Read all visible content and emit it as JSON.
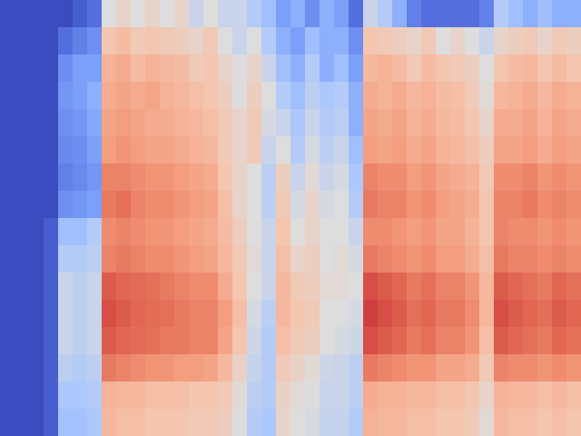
{
  "chart_data": {
    "type": "heatmap",
    "tick_labels": false,
    "zlim": [
      0,
      1
    ],
    "cells": [
      [
        0,
        0,
        0,
        0,
        0,
        0.05,
        0.1,
        0.5,
        0.55,
        0.5,
        0.55,
        0.5,
        0.55,
        0.45,
        0.5,
        0.45,
        0.45,
        0.4,
        0.35,
        0.25,
        0.3,
        0.2,
        0.3,
        0.25,
        0.1,
        0.45,
        0.4,
        0.3,
        0.15,
        0.1,
        0.1,
        0.1,
        0.1,
        0.15,
        0.4,
        0.35,
        0.3,
        0.35,
        0.3,
        0.3
      ],
      [
        0,
        0,
        0,
        0,
        0.1,
        0.15,
        0.2,
        0.62,
        0.65,
        0.6,
        0.62,
        0.6,
        0.58,
        0.55,
        0.6,
        0.5,
        0.45,
        0.5,
        0.4,
        0.3,
        0.25,
        0.35,
        0.3,
        0.3,
        0.2,
        0.62,
        0.6,
        0.58,
        0.55,
        0.6,
        0.5,
        0.55,
        0.5,
        0.45,
        0.55,
        0.58,
        0.6,
        0.55,
        0.6,
        0.58
      ],
      [
        0,
        0,
        0,
        0,
        0.2,
        0.25,
        0.25,
        0.68,
        0.7,
        0.65,
        0.68,
        0.66,
        0.65,
        0.6,
        0.62,
        0.55,
        0.5,
        0.55,
        0.45,
        0.35,
        0.3,
        0.4,
        0.3,
        0.35,
        0.25,
        0.66,
        0.68,
        0.65,
        0.6,
        0.65,
        0.62,
        0.6,
        0.58,
        0.5,
        0.62,
        0.65,
        0.66,
        0.62,
        0.65,
        0.62
      ],
      [
        0,
        0,
        0,
        0,
        0.22,
        0.25,
        0.3,
        0.7,
        0.72,
        0.7,
        0.72,
        0.68,
        0.66,
        0.64,
        0.62,
        0.58,
        0.5,
        0.58,
        0.5,
        0.4,
        0.35,
        0.42,
        0.38,
        0.4,
        0.3,
        0.7,
        0.68,
        0.7,
        0.66,
        0.68,
        0.65,
        0.64,
        0.6,
        0.52,
        0.66,
        0.68,
        0.7,
        0.66,
        0.7,
        0.68
      ],
      [
        0,
        0,
        0,
        0,
        0.2,
        0.22,
        0.28,
        0.72,
        0.74,
        0.72,
        0.7,
        0.7,
        0.68,
        0.66,
        0.64,
        0.6,
        0.55,
        0.6,
        0.48,
        0.45,
        0.38,
        0.45,
        0.4,
        0.42,
        0.3,
        0.72,
        0.7,
        0.72,
        0.68,
        0.7,
        0.66,
        0.65,
        0.62,
        0.55,
        0.7,
        0.7,
        0.72,
        0.68,
        0.72,
        0.7
      ],
      [
        0,
        0,
        0,
        0,
        0.18,
        0.2,
        0.25,
        0.74,
        0.76,
        0.74,
        0.72,
        0.72,
        0.7,
        0.68,
        0.66,
        0.6,
        0.55,
        0.6,
        0.45,
        0.5,
        0.4,
        0.48,
        0.42,
        0.45,
        0.35,
        0.74,
        0.72,
        0.74,
        0.7,
        0.72,
        0.68,
        0.66,
        0.64,
        0.58,
        0.72,
        0.72,
        0.74,
        0.7,
        0.74,
        0.72
      ],
      [
        0,
        0,
        0,
        0,
        0.15,
        0.18,
        0.22,
        0.8,
        0.8,
        0.78,
        0.76,
        0.76,
        0.74,
        0.72,
        0.7,
        0.62,
        0.55,
        0.5,
        0.42,
        0.58,
        0.45,
        0.52,
        0.45,
        0.48,
        0.38,
        0.8,
        0.78,
        0.78,
        0.74,
        0.76,
        0.72,
        0.7,
        0.68,
        0.6,
        0.78,
        0.78,
        0.8,
        0.76,
        0.78,
        0.76
      ],
      [
        0,
        0,
        0,
        0,
        0.2,
        0.22,
        0.25,
        0.82,
        0.84,
        0.8,
        0.78,
        0.78,
        0.76,
        0.74,
        0.72,
        0.64,
        0.55,
        0.5,
        0.42,
        0.6,
        0.48,
        0.55,
        0.48,
        0.5,
        0.4,
        0.82,
        0.8,
        0.8,
        0.76,
        0.78,
        0.74,
        0.72,
        0.7,
        0.62,
        0.8,
        0.8,
        0.82,
        0.78,
        0.8,
        0.78
      ],
      [
        0,
        0,
        0,
        0.05,
        0.35,
        0.35,
        0.4,
        0.78,
        0.8,
        0.78,
        0.76,
        0.76,
        0.74,
        0.72,
        0.7,
        0.65,
        0.58,
        0.5,
        0.45,
        0.62,
        0.5,
        0.55,
        0.5,
        0.5,
        0.45,
        0.78,
        0.78,
        0.76,
        0.74,
        0.76,
        0.72,
        0.72,
        0.68,
        0.62,
        0.8,
        0.78,
        0.78,
        0.76,
        0.78,
        0.76
      ],
      [
        0,
        0,
        0,
        0.05,
        0.4,
        0.4,
        0.42,
        0.8,
        0.82,
        0.8,
        0.78,
        0.78,
        0.76,
        0.74,
        0.72,
        0.66,
        0.6,
        0.52,
        0.45,
        0.64,
        0.55,
        0.58,
        0.5,
        0.52,
        0.48,
        0.82,
        0.8,
        0.78,
        0.76,
        0.78,
        0.74,
        0.74,
        0.7,
        0.64,
        0.82,
        0.8,
        0.8,
        0.78,
        0.8,
        0.78
      ],
      [
        0,
        0,
        0,
        0.05,
        0.45,
        0.42,
        0.45,
        0.88,
        0.86,
        0.85,
        0.84,
        0.82,
        0.8,
        0.78,
        0.78,
        0.7,
        0.62,
        0.5,
        0.45,
        0.66,
        0.6,
        0.58,
        0.52,
        0.52,
        0.5,
        0.9,
        0.88,
        0.86,
        0.82,
        0.84,
        0.8,
        0.8,
        0.76,
        0.66,
        0.88,
        0.86,
        0.84,
        0.82,
        0.86,
        0.84
      ],
      [
        0,
        0,
        0,
        0.05,
        0.45,
        0.42,
        0.45,
        0.9,
        0.88,
        0.86,
        0.85,
        0.84,
        0.82,
        0.8,
        0.8,
        0.74,
        0.64,
        0.48,
        0.42,
        0.66,
        0.62,
        0.6,
        0.5,
        0.5,
        0.48,
        0.92,
        0.9,
        0.88,
        0.84,
        0.86,
        0.82,
        0.82,
        0.78,
        0.66,
        0.9,
        0.88,
        0.86,
        0.84,
        0.88,
        0.86
      ],
      [
        0,
        0,
        0,
        0.05,
        0.45,
        0.42,
        0.45,
        0.88,
        0.86,
        0.85,
        0.84,
        0.82,
        0.82,
        0.8,
        0.8,
        0.72,
        0.62,
        0.46,
        0.4,
        0.64,
        0.6,
        0.58,
        0.5,
        0.48,
        0.46,
        0.9,
        0.88,
        0.86,
        0.82,
        0.84,
        0.8,
        0.8,
        0.76,
        0.64,
        0.88,
        0.86,
        0.84,
        0.82,
        0.86,
        0.84
      ],
      [
        0,
        0,
        0,
        0.05,
        0.42,
        0.4,
        0.42,
        0.82,
        0.8,
        0.78,
        0.76,
        0.76,
        0.74,
        0.74,
        0.72,
        0.66,
        0.56,
        0.44,
        0.4,
        0.6,
        0.56,
        0.52,
        0.46,
        0.45,
        0.42,
        0.82,
        0.8,
        0.78,
        0.76,
        0.76,
        0.72,
        0.72,
        0.7,
        0.6,
        0.8,
        0.78,
        0.78,
        0.76,
        0.78,
        0.76
      ],
      [
        0,
        0,
        0,
        0.05,
        0.38,
        0.38,
        0.4,
        0.68,
        0.66,
        0.66,
        0.64,
        0.64,
        0.64,
        0.62,
        0.62,
        0.6,
        0.52,
        0.42,
        0.4,
        0.56,
        0.52,
        0.5,
        0.45,
        0.45,
        0.42,
        0.7,
        0.68,
        0.68,
        0.66,
        0.66,
        0.64,
        0.64,
        0.62,
        0.55,
        0.68,
        0.66,
        0.66,
        0.64,
        0.66,
        0.64
      ],
      [
        0,
        0,
        0,
        0.05,
        0.36,
        0.36,
        0.38,
        0.66,
        0.64,
        0.64,
        0.62,
        0.62,
        0.62,
        0.6,
        0.6,
        0.58,
        0.5,
        0.4,
        0.38,
        0.55,
        0.5,
        0.48,
        0.44,
        0.44,
        0.4,
        0.68,
        0.66,
        0.66,
        0.64,
        0.64,
        0.62,
        0.62,
        0.6,
        0.52,
        0.66,
        0.64,
        0.64,
        0.62,
        0.64,
        0.62
      ]
    ]
  }
}
